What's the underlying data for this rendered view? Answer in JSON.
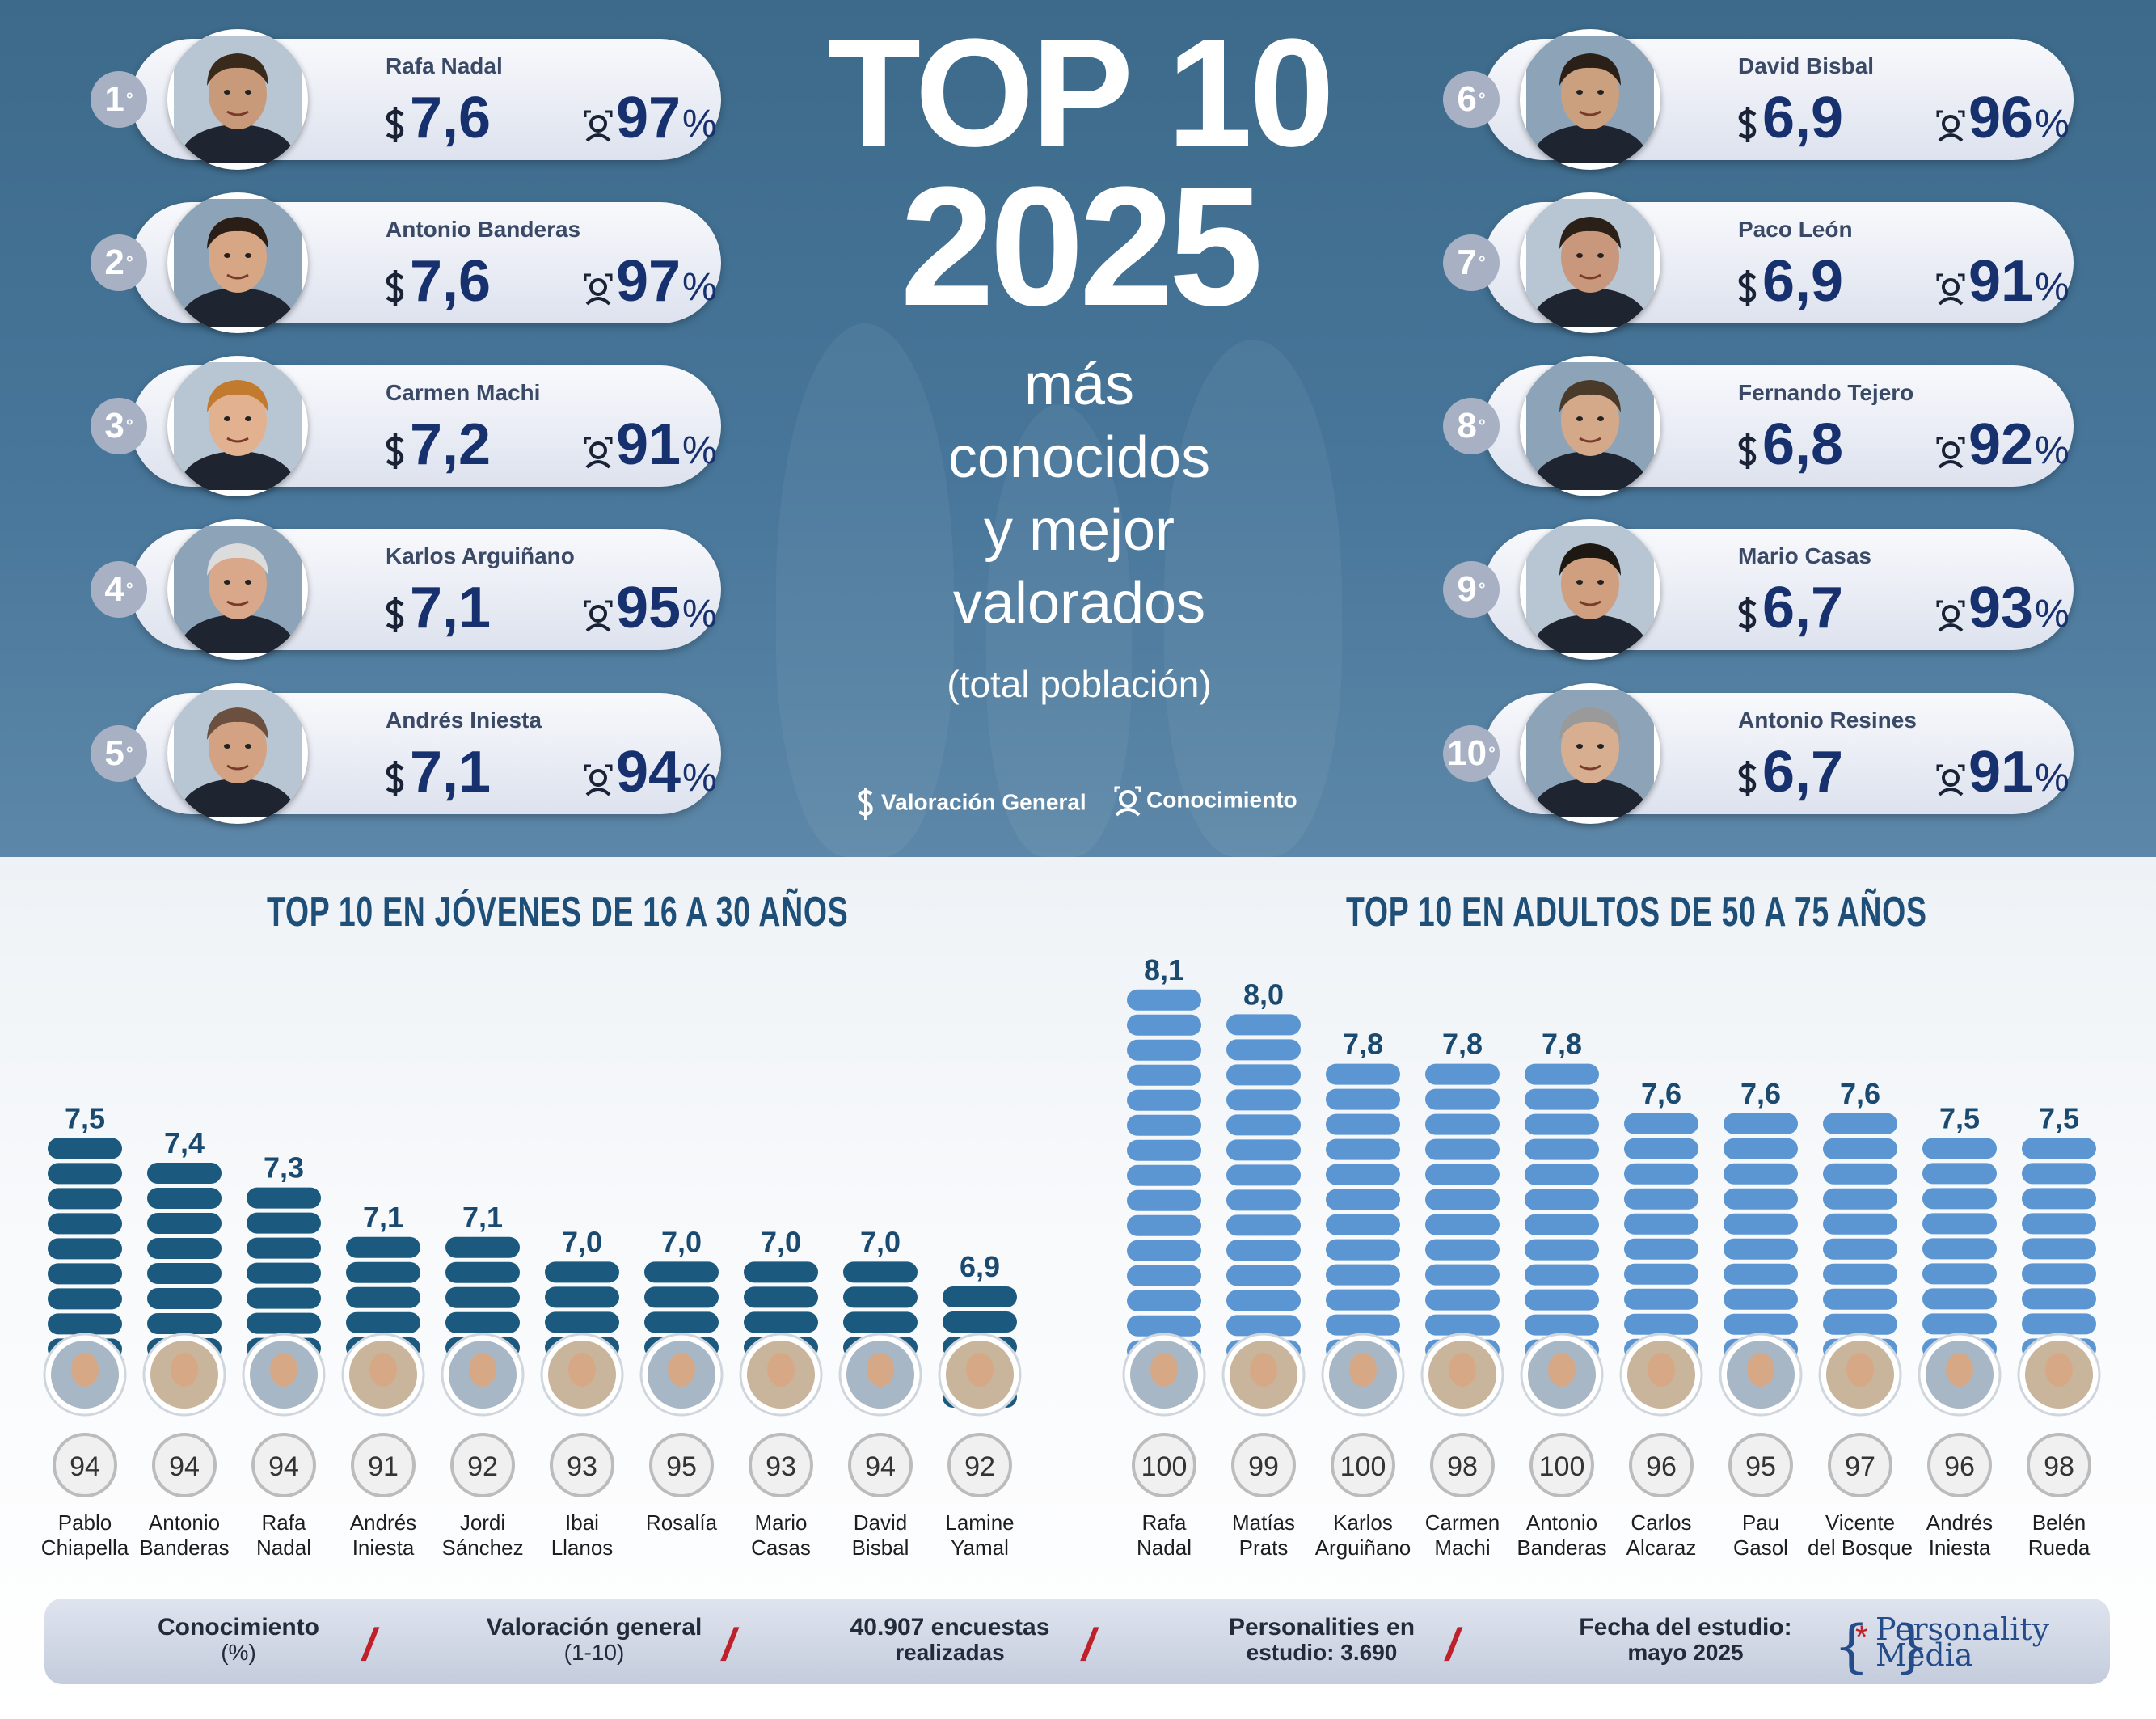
{
  "title": {
    "line1": "TOP 10",
    "line2": "2025"
  },
  "subtitle": {
    "line1": "más",
    "line2": "conocidos",
    "line3": "y  mejor",
    "line4": "valorados",
    "line5": "(total población)"
  },
  "legend": {
    "score_label": "Valoración General",
    "knowledge_label": "Conocimiento"
  },
  "ranking": [
    {
      "rank": "1",
      "name": "Rafa Nadal",
      "score": "7,6",
      "knowledge": "97"
    },
    {
      "rank": "2",
      "name": "Antonio Banderas",
      "score": "7,6",
      "knowledge": "97"
    },
    {
      "rank": "3",
      "name": "Carmen Machi",
      "score": "7,2",
      "knowledge": "91"
    },
    {
      "rank": "4",
      "name": "Karlos Arguiñano",
      "score": "7,1",
      "knowledge": "95"
    },
    {
      "rank": "5",
      "name": "Andrés Iniesta",
      "score": "7,1",
      "knowledge": "94"
    },
    {
      "rank": "6",
      "name": "David Bisbal",
      "score": "6,9",
      "knowledge": "96"
    },
    {
      "rank": "7",
      "name": "Paco León",
      "score": "6,9",
      "knowledge": "91"
    },
    {
      "rank": "8",
      "name": "Fernando Tejero",
      "score": "6,8",
      "knowledge": "92"
    },
    {
      "rank": "9",
      "name": "Mario Casas",
      "score": "6,7",
      "knowledge": "93"
    },
    {
      "rank": "10",
      "name": "Antonio Resines",
      "score": "6,7",
      "knowledge": "91"
    }
  ],
  "percent_sign": "%",
  "degree_sign": "°",
  "colors": {
    "young_bar": "#1b5a7e",
    "adult_bar": "#5b96d3",
    "value_young": "#1b4a70",
    "value_adult": "#1b4a70",
    "accent_red": "#c0202a"
  },
  "chart_data": [
    {
      "type": "bar",
      "title": "TOP 10 EN JÓVENES DE 16 A 30 AÑOS",
      "categories": [
        "Pablo Chiapella",
        "Antonio Banderas",
        "Rafa Nadal",
        "Andrés Iniesta",
        "Jordi Sánchez",
        "Ibai Llanos",
        "Rosalía",
        "Mario Casas",
        "David Bisbal",
        "Lamine Yamal"
      ],
      "label_lines": [
        [
          "Pablo",
          "Chiapella"
        ],
        [
          "Antonio",
          "Banderas"
        ],
        [
          "Rafa",
          "Nadal"
        ],
        [
          "Andrés",
          "Iniesta"
        ],
        [
          "Jordi",
          "Sánchez"
        ],
        [
          "Ibai",
          "Llanos"
        ],
        [
          "Rosalía",
          ""
        ],
        [
          "Mario",
          "Casas"
        ],
        [
          "David",
          "Bisbal"
        ],
        [
          "Lamine",
          "Yamal"
        ]
      ],
      "series": [
        {
          "name": "Valoración general",
          "values": [
            7.5,
            7.4,
            7.3,
            7.1,
            7.1,
            7.0,
            7.0,
            7.0,
            7.0,
            6.9
          ],
          "labels": [
            "7,5",
            "7,4",
            "7,3",
            "7,1",
            "7,1",
            "7,0",
            "7,0",
            "7,0",
            "7,0",
            "6,9"
          ]
        },
        {
          "name": "Conocimiento",
          "values": [
            94,
            94,
            94,
            91,
            92,
            93,
            95,
            93,
            94,
            92
          ]
        }
      ]
    },
    {
      "type": "bar",
      "title": "TOP 10 EN ADULTOS DE 50 A 75 AÑOS",
      "categories": [
        "Rafa Nadal",
        "Matías Prats",
        "Karlos Arguiñano",
        "Carmen Machi",
        "Antonio Banderas",
        "Carlos Alcaraz",
        "Pau Gasol",
        "Vicente del Bosque",
        "Andrés Iniesta",
        "Belén Rueda"
      ],
      "label_lines": [
        [
          "Rafa",
          "Nadal"
        ],
        [
          "Matías",
          "Prats"
        ],
        [
          "Karlos",
          "Arguiñano"
        ],
        [
          "Carmen",
          "Machi"
        ],
        [
          "Antonio",
          "Banderas"
        ],
        [
          "Carlos",
          "Alcaraz"
        ],
        [
          "Pau",
          "Gasol"
        ],
        [
          "Vicente",
          "del Bosque"
        ],
        [
          "Andrés",
          "Iniesta"
        ],
        [
          "Belén",
          "Rueda"
        ]
      ],
      "series": [
        {
          "name": "Valoración general",
          "values": [
            8.1,
            8.0,
            7.8,
            7.8,
            7.8,
            7.6,
            7.6,
            7.6,
            7.5,
            7.5
          ],
          "labels": [
            "8,1",
            "8,0",
            "7,8",
            "7,8",
            "7,8",
            "7,6",
            "7,6",
            "7,6",
            "7,5",
            "7,5"
          ]
        },
        {
          "name": "Conocimiento",
          "values": [
            100,
            99,
            100,
            98,
            100,
            96,
            95,
            97,
            96,
            98
          ]
        }
      ]
    }
  ],
  "footer": {
    "item1": {
      "line1": "Conocimiento",
      "line2": "(%)"
    },
    "item2": {
      "line1": "Valoración general",
      "line2": "(1-10)"
    },
    "item3": {
      "line1": "40.907 encuestas",
      "line2": "realizadas"
    },
    "item4": {
      "line1": "Personalities en",
      "line2": "estudio: 3.690"
    },
    "item5": {
      "line1": "Fecha del estudio:",
      "line2": "mayo 2025"
    },
    "separator": "/",
    "brand_line1": "Personality",
    "brand_line2": "Media",
    "brand_open": "{",
    "brand_star": "*",
    "brand_close": "}"
  }
}
